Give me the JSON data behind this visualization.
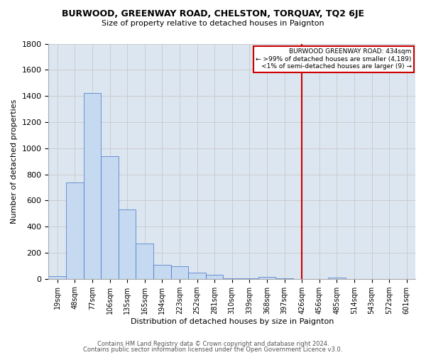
{
  "title": "BURWOOD, GREENWAY ROAD, CHELSTON, TORQUAY, TQ2 6JE",
  "subtitle": "Size of property relative to detached houses in Paignton",
  "xlabel": "Distribution of detached houses by size in Paignton",
  "ylabel": "Number of detached properties",
  "footer1": "Contains HM Land Registry data © Crown copyright and database right 2024.",
  "footer2": "Contains public sector information licensed under the Open Government Licence v3.0.",
  "categories": [
    "19sqm",
    "48sqm",
    "77sqm",
    "106sqm",
    "135sqm",
    "165sqm",
    "194sqm",
    "223sqm",
    "252sqm",
    "281sqm",
    "310sqm",
    "339sqm",
    "368sqm",
    "397sqm",
    "426sqm",
    "456sqm",
    "485sqm",
    "514sqm",
    "543sqm",
    "572sqm",
    "601sqm"
  ],
  "values": [
    20,
    735,
    1420,
    940,
    530,
    270,
    105,
    95,
    50,
    30,
    5,
    5,
    15,
    5,
    0,
    0,
    10,
    0,
    0,
    0,
    0
  ],
  "bar_color": "#c5d9f1",
  "bar_edge_color": "#4472c4",
  "annotation_line1": "BURWOOD GREENWAY ROAD: 434sqm",
  "annotation_line2": "← >99% of detached houses are smaller (4,189)",
  "annotation_line3": "<1% of semi-detached houses are larger (9) →",
  "ylim": [
    0,
    1800
  ],
  "yticks": [
    0,
    200,
    400,
    600,
    800,
    1000,
    1200,
    1400,
    1600,
    1800
  ],
  "grid_color": "#cccccc",
  "bg_color": "#dce6f1",
  "vertical_line_color": "#cc0000",
  "vertical_line_index": 14,
  "annotation_box_edge_color": "#cc0000"
}
